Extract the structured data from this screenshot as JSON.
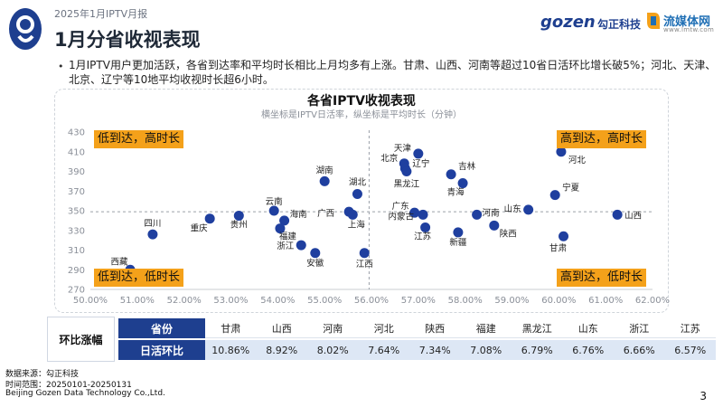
{
  "header": {
    "report_name": "2025年1月IPTV月报",
    "title": "1月分省收视表现",
    "brand_gozen": "gozen",
    "brand_gozen_cn": "勾正科技",
    "brand_lmt": "流媒体网",
    "brand_lmt_sub": "www.lmtw.com"
  },
  "summary": "1月IPTV用户更加活跃，各省到达率和平均时长相比上月均多有上涨。甘肃、山西、河南等超过10省日活环比增长破5%；河北、天津、北京、辽宁等10地平均收视时长超6小时。",
  "colors": {
    "point": "#1f3f9f",
    "quadrant_bg": "#f4a11a",
    "table_header": "#1e3f8f",
    "table_alt": "#dde7f5"
  },
  "chart_data": {
    "type": "scatter",
    "title": "各省IPTV收视表现",
    "subtitle": "横坐标是IPTV日活率，纵坐标是平均时长（分钟）",
    "xlabel": "",
    "ylabel": "",
    "x_unit": "%",
    "xlim": [
      50,
      62
    ],
    "ylim": [
      270,
      430
    ],
    "xticks": [
      "50.00%",
      "51.00%",
      "52.00%",
      "53.00%",
      "54.00%",
      "55.00%",
      "56.00%",
      "57.00%",
      "58.00%",
      "59.00%",
      "60.00%",
      "61.00%",
      "62.00%"
    ],
    "yticks": [
      "270",
      "290",
      "310",
      "330",
      "350",
      "370",
      "390",
      "410",
      "430"
    ],
    "reference_x": 55.95,
    "reference_y": 349,
    "quadrants": {
      "top_left": "低到达，高时长",
      "top_right": "高到达，高时长",
      "bottom_left": "低到达，低时长",
      "bottom_right": "高到达，低时长"
    },
    "points": [
      {
        "label": "西藏",
        "x": 50.85,
        "y": 290
      },
      {
        "label": "四川",
        "x": 51.33,
        "y": 326
      },
      {
        "label": "重庆",
        "x": 52.55,
        "y": 342
      },
      {
        "label": "贵州",
        "x": 53.17,
        "y": 345
      },
      {
        "label": "云南",
        "x": 53.92,
        "y": 350
      },
      {
        "label": "海南",
        "x": 54.14,
        "y": 340
      },
      {
        "label": "福建",
        "x": 54.05,
        "y": 332
      },
      {
        "label": "浙江",
        "x": 54.5,
        "y": 315
      },
      {
        "label": "安徽",
        "x": 54.8,
        "y": 307
      },
      {
        "label": "湖南",
        "x": 55.0,
        "y": 380
      },
      {
        "label": "湖北",
        "x": 55.7,
        "y": 367
      },
      {
        "label": "广西",
        "x": 55.52,
        "y": 349
      },
      {
        "label": "上海",
        "x": 55.6,
        "y": 346
      },
      {
        "label": "江西",
        "x": 55.85,
        "y": 307
      },
      {
        "label": "天津",
        "x": 57.0,
        "y": 408
      },
      {
        "label": "北京",
        "x": 56.7,
        "y": 398
      },
      {
        "label": "辽宁",
        "x": 56.72,
        "y": 393
      },
      {
        "label": "黑龙江",
        "x": 56.75,
        "y": 390
      },
      {
        "label": "广东",
        "x": 56.92,
        "y": 348
      },
      {
        "label": "内蒙古",
        "x": 57.1,
        "y": 346
      },
      {
        "label": "江苏",
        "x": 57.15,
        "y": 333
      },
      {
        "label": "吉林",
        "x": 57.7,
        "y": 387
      },
      {
        "label": "青海",
        "x": 57.95,
        "y": 378
      },
      {
        "label": "新疆",
        "x": 57.85,
        "y": 328
      },
      {
        "label": "河南",
        "x": 58.25,
        "y": 346
      },
      {
        "label": "陕西",
        "x": 58.62,
        "y": 335
      },
      {
        "label": "山东",
        "x": 59.35,
        "y": 351
      },
      {
        "label": "宁夏",
        "x": 59.92,
        "y": 366
      },
      {
        "label": "河北",
        "x": 60.05,
        "y": 410
      },
      {
        "label": "甘肃",
        "x": 60.1,
        "y": 324
      },
      {
        "label": "山西",
        "x": 61.25,
        "y": 346
      }
    ]
  },
  "table": {
    "head_label": "环比涨幅",
    "row1_label": "省份",
    "row2_label": "日活环比",
    "provinces": [
      "甘肃",
      "山西",
      "河南",
      "河北",
      "陕西",
      "福建",
      "黑龙江",
      "山东",
      "浙江",
      "江苏"
    ],
    "values": [
      "10.86%",
      "8.92%",
      "8.02%",
      "7.64%",
      "7.34%",
      "7.08%",
      "6.79%",
      "6.76%",
      "6.66%",
      "6.57%"
    ]
  },
  "footer": {
    "source": "数据来源：勾正科技",
    "time_range": "时间范围：20250101-20250131",
    "company": "Beijing Gozen Data Technology Co.,Ltd.",
    "page": "3"
  }
}
